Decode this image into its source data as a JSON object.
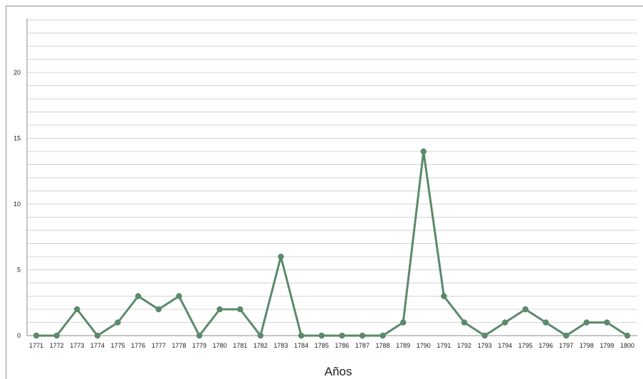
{
  "chart_data": {
    "type": "line",
    "title": "",
    "xlabel": "Años",
    "ylabel": "",
    "ylim": [
      0,
      24
    ],
    "yticks": [
      0,
      5,
      10,
      15,
      20
    ],
    "grid": true,
    "legend": "none",
    "x": [
      "1771",
      "1772",
      "1773",
      "1774",
      "1775",
      "1776",
      "1777",
      "1778",
      "1779",
      "1780",
      "1781",
      "1782",
      "1783",
      "1784",
      "1785",
      "1786",
      "1787",
      "1788",
      "1789",
      "1790",
      "1791",
      "1792",
      "1793",
      "1794",
      "1795",
      "1796",
      "1797",
      "1798",
      "1799",
      "1800"
    ],
    "series": [
      {
        "color": "#5a8a6a",
        "values": [
          0,
          0,
          2,
          0,
          1,
          3,
          2,
          3,
          0,
          2,
          2,
          0,
          6,
          0,
          0,
          0,
          0,
          0,
          1,
          14,
          3,
          1,
          0,
          1,
          2,
          1,
          0,
          1,
          1,
          0
        ]
      }
    ]
  }
}
